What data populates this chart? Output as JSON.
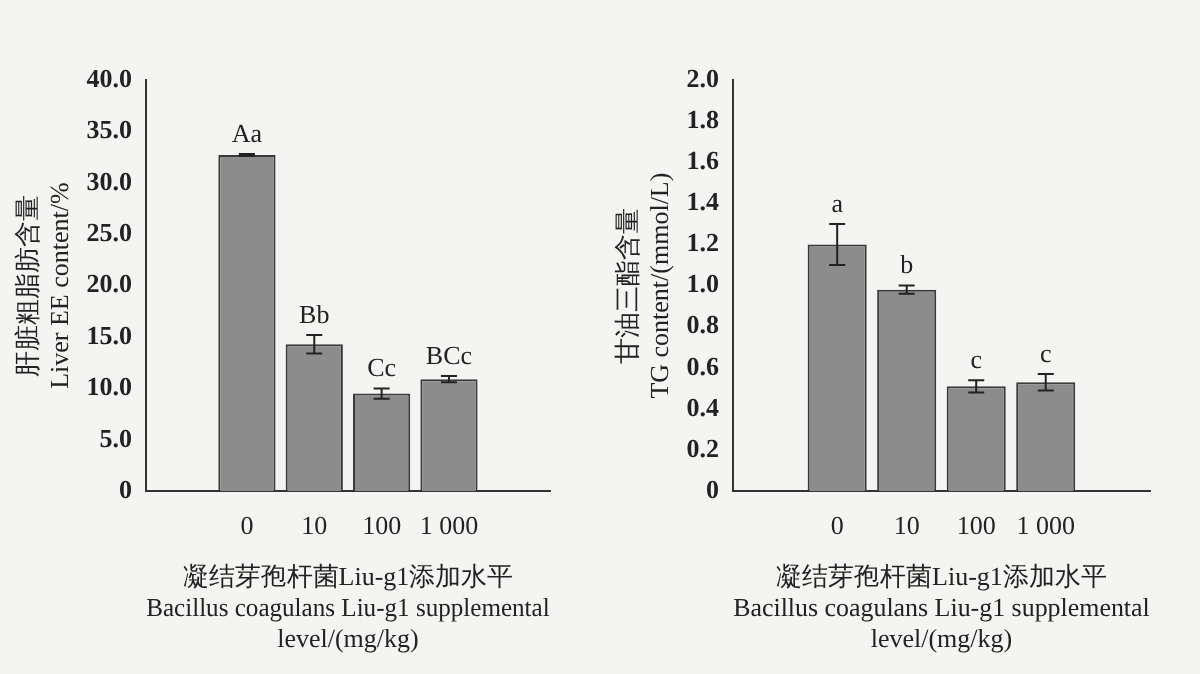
{
  "chart_data": [
    {
      "type": "bar",
      "ylabel": "肝脏粗脂肪含量\nLiver EE content/%",
      "xlabel": "凝结芽孢杆菌Liu-g1添加水平\nBacillus coagulans Liu-g1 supplemental\nlevel/(mg/kg)",
      "categories": [
        null,
        "0",
        "10",
        "100",
        "1 000",
        null
      ],
      "values": [
        null,
        32.7,
        14.3,
        9.5,
        10.9,
        null
      ],
      "errors": [
        null,
        0.1,
        0.9,
        0.5,
        0.3,
        null
      ],
      "color": "#8c8c8c",
      "ylim": [
        0,
        40
      ],
      "yticks": [
        0,
        {
          "value": 5,
          "label": "5.0"
        },
        {
          "value": 10,
          "label": "10.0"
        },
        {
          "value": 15,
          "label": "15.0"
        },
        {
          "value": 20,
          "label": "20.0"
        },
        {
          "value": 25,
          "label": "25.0"
        },
        {
          "value": 30,
          "label": "30.0"
        },
        {
          "value": 35,
          "label": "35.0"
        },
        {
          "value": 40,
          "label": "40.0"
        }
      ],
      "grid": false,
      "legend": false,
      "annotations": [
        {
          "text": "Aa",
          "x": "0",
          "y": 32.8
        },
        {
          "text": "Bb",
          "x": "10",
          "y": 15.2
        },
        {
          "text": "Cc",
          "x": "100",
          "y": 10
        },
        {
          "text": "BCc",
          "x": "1 000",
          "y": 11.2
        }
      ]
    },
    {
      "type": "bar",
      "ylabel": "甘油三酯含量\nTG content/(mmol/L)",
      "xlabel": "凝结芽孢杆菌Liu-g1添加水平\nBacillus coagulans Liu-g1 supplemental\nlevel/(mg/kg)",
      "categories": [
        null,
        "0",
        "10",
        "100",
        "1 000",
        null
      ],
      "values": [
        null,
        1.2,
        0.98,
        0.51,
        0.53,
        null
      ],
      "errors": [
        null,
        0.1,
        0.02,
        0.03,
        0.04,
        null
      ],
      "color": "#8c8c8c",
      "ylim": [
        0,
        2
      ],
      "yticks": [
        0,
        0.2,
        0.4,
        0.6,
        0.8,
        {
          "value": 1,
          "label": "1.0"
        },
        1.2,
        1.4,
        1.6,
        1.8,
        {
          "value": 2,
          "label": "2.0"
        }
      ],
      "grid": false,
      "legend": false,
      "annotations": [
        {
          "text": "a",
          "x": "0",
          "y": 1.3
        },
        {
          "text": "b",
          "x": "10",
          "y": 1.0
        },
        {
          "text": "c",
          "x": "100",
          "y": 0.54
        },
        {
          "text": "c",
          "x": "1 000",
          "y": 0.57
        }
      ]
    }
  ]
}
